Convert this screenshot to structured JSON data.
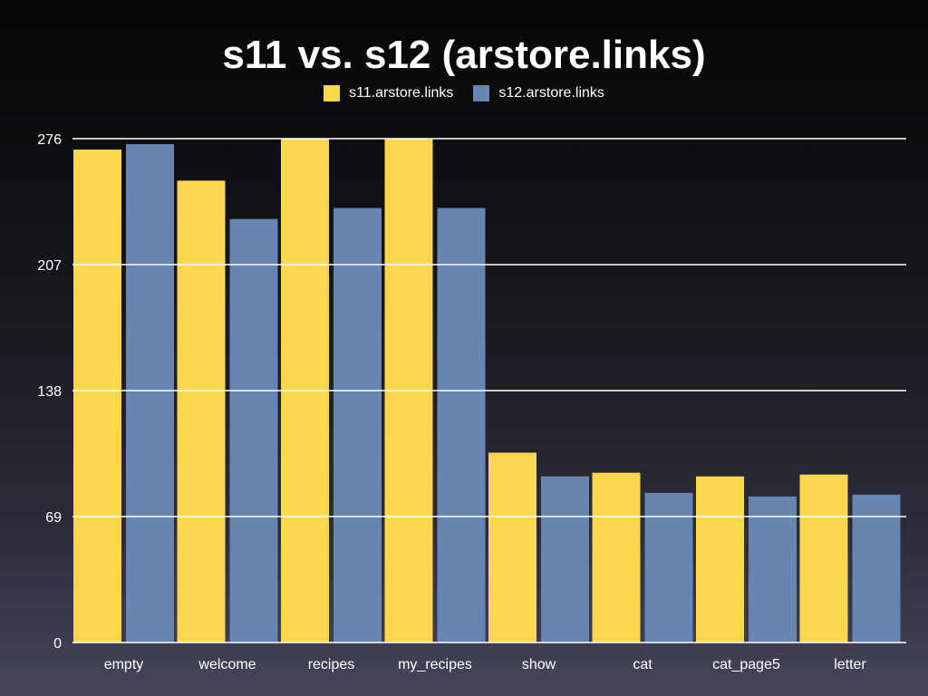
{
  "chart_data": {
    "type": "bar",
    "title": "s11 vs. s12 (arstore.links)",
    "categories": [
      "empty",
      "welcome",
      "recipes",
      "my_recipes",
      "show",
      "cat",
      "cat_page5",
      "letter"
    ],
    "series": [
      {
        "name": "s11.arstore.links",
        "color": "#fdd64f",
        "values": [
          270,
          253,
          276,
          276,
          104,
          93,
          91,
          92
        ]
      },
      {
        "name": "s12.arstore.links",
        "color": "#6785b2",
        "values": [
          273,
          232,
          238,
          238,
          91,
          82,
          80,
          81
        ]
      }
    ],
    "yticks": [
      "0",
      "69",
      "138",
      "207",
      "276"
    ],
    "ylim": [
      0,
      276
    ],
    "xlabel": "",
    "ylabel": "",
    "grid": true,
    "legend_position": "top-center"
  }
}
